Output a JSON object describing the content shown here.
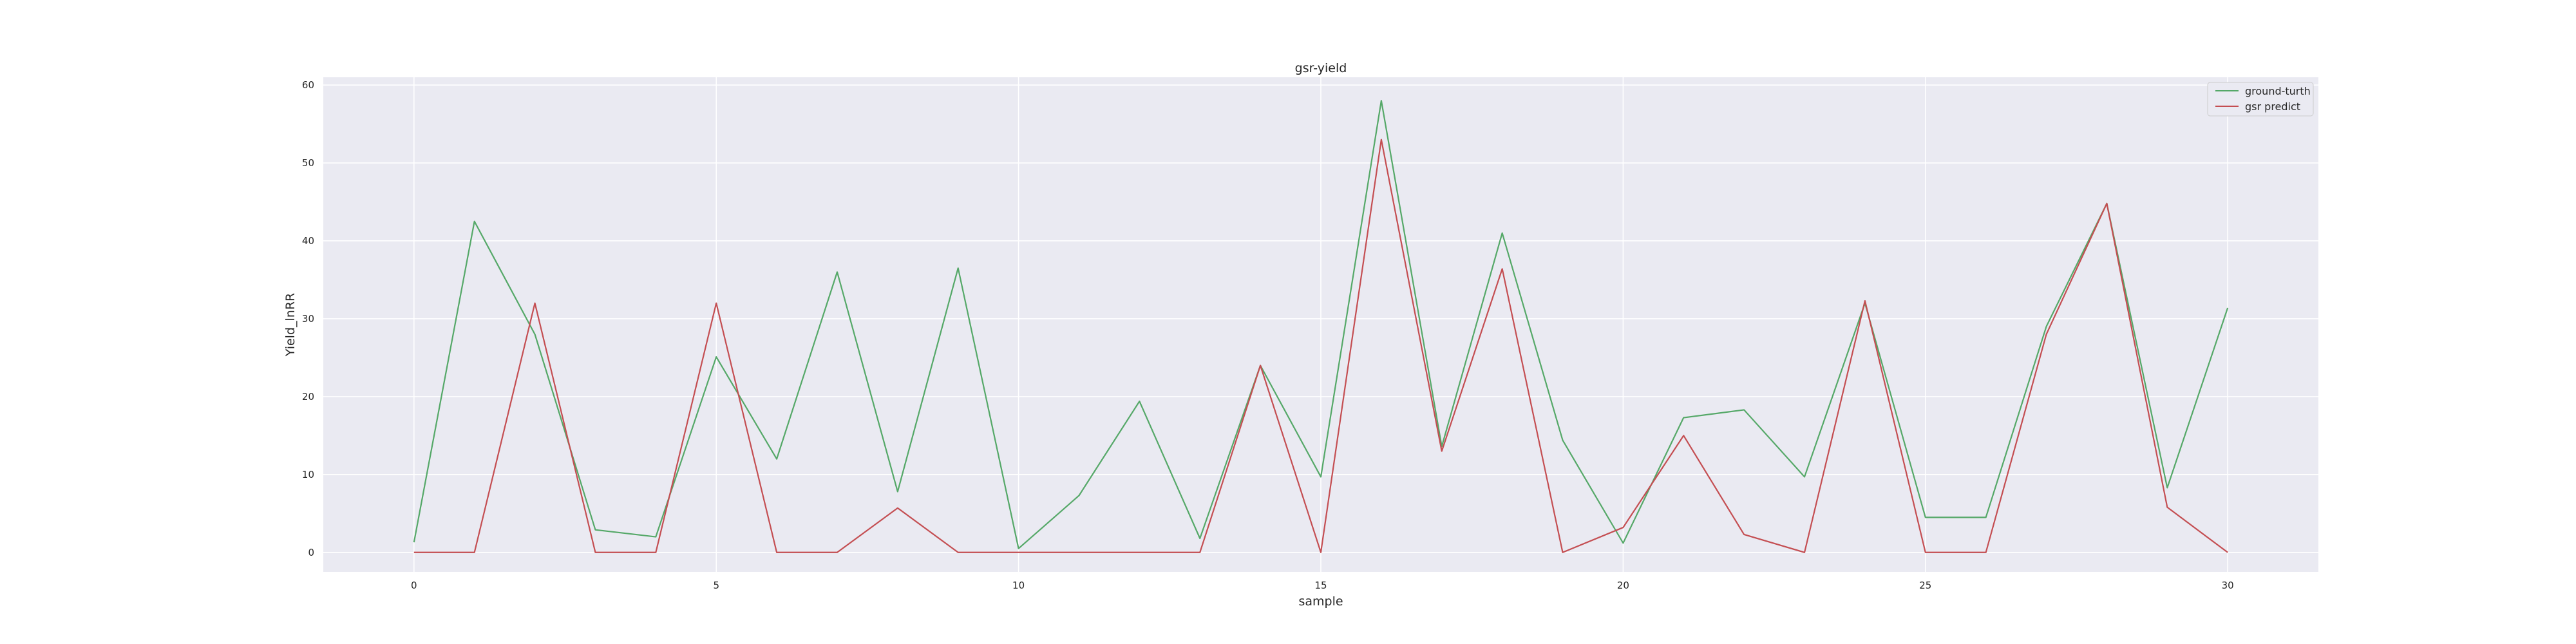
{
  "chart_data": {
    "type": "line",
    "title": "gsr-yield",
    "xlabel": "sample",
    "ylabel": "Yield_lnRR",
    "xlim": [
      -1.5,
      31.5
    ],
    "ylim": [
      -2.5,
      61
    ],
    "xticks": [
      0,
      5,
      10,
      15,
      20,
      25,
      30
    ],
    "yticks": [
      0,
      10,
      20,
      30,
      40,
      50,
      60
    ],
    "grid": true,
    "legend_position": "top-right",
    "x": [
      0,
      1,
      2,
      3,
      4,
      5,
      6,
      7,
      8,
      9,
      10,
      11,
      12,
      13,
      14,
      15,
      16,
      17,
      18,
      19,
      20,
      21,
      22,
      23,
      24,
      25,
      26,
      27,
      28,
      29,
      30
    ],
    "series": [
      {
        "name": "ground-turth",
        "color": "#55a868",
        "values": [
          1.3,
          42.5,
          28.0,
          2.9,
          2.0,
          25.1,
          12.0,
          36.0,
          7.8,
          36.5,
          0.5,
          7.3,
          19.4,
          1.8,
          24.0,
          9.7,
          58.0,
          13.6,
          41.0,
          14.4,
          1.2,
          17.3,
          18.3,
          9.7,
          32.0,
          4.5,
          4.5,
          29.0,
          44.8,
          8.3,
          31.4
        ]
      },
      {
        "name": "gsr predict",
        "color": "#c44e52",
        "values": [
          0.0,
          0.0,
          32.0,
          0.0,
          0.0,
          32.0,
          0.0,
          0.0,
          5.7,
          0.0,
          0.0,
          0.0,
          0.0,
          0.0,
          24.0,
          0.0,
          53.0,
          13.0,
          36.4,
          0.0,
          3.2,
          15.0,
          2.3,
          0.0,
          32.3,
          0.0,
          0.0,
          28.0,
          44.8,
          5.8,
          0.0
        ]
      }
    ],
    "style": {
      "plot_background": "#eaeaf2",
      "page_background": "#ffffff",
      "grid_color": "#ffffff",
      "text_color": "#262626"
    }
  }
}
